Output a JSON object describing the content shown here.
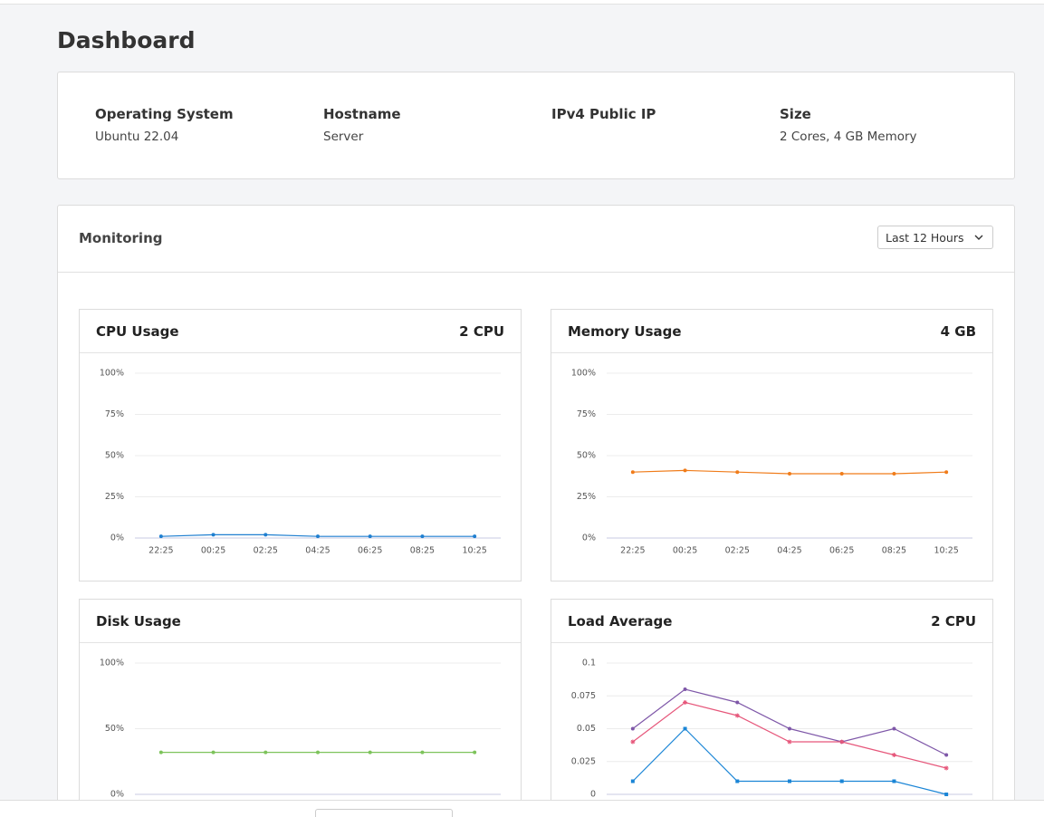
{
  "header": {
    "title": "Dashboard"
  },
  "info": [
    {
      "label": "Operating System",
      "value": "Ubuntu 22.04"
    },
    {
      "label": "Hostname",
      "value": "Server"
    },
    {
      "label": "IPv4 Public IP"
    },
    {
      "label": "Size",
      "value": "2 Cores, 4 GB Memory"
    }
  ],
  "monitoring": {
    "title": "Monitoring",
    "range": "Last 12 Hours",
    "charts": [
      {
        "type": "line",
        "title": "CPU Usage",
        "badge": "2 CPU",
        "categories": [
          "22:25",
          "00:25",
          "02:25",
          "04:25",
          "06:25",
          "08:25",
          "10:25"
        ],
        "series": [
          {
            "color": "#1f7fd0",
            "marker": "circle",
            "values": [
              1,
              2,
              2,
              1,
              1,
              1,
              1
            ]
          }
        ],
        "ylim": [
          0,
          100
        ],
        "yticks": [
          {
            "value": 0,
            "label": "0%"
          },
          {
            "value": 25,
            "label": "25%"
          },
          {
            "value": 50,
            "label": "50%"
          },
          {
            "value": 75,
            "label": "75%"
          },
          {
            "value": 100,
            "label": "100%"
          }
        ]
      },
      {
        "type": "line",
        "title": "Memory Usage",
        "badge": "4 GB",
        "categories": [
          "22:25",
          "00:25",
          "02:25",
          "04:25",
          "06:25",
          "08:25",
          "10:25"
        ],
        "series": [
          {
            "color": "#f07c1a",
            "marker": "circle",
            "values": [
              40,
              41,
              40,
              39,
              39,
              39,
              40
            ]
          }
        ],
        "ylim": [
          0,
          100
        ],
        "yticks": [
          {
            "value": 0,
            "label": "0%"
          },
          {
            "value": 25,
            "label": "25%"
          },
          {
            "value": 50,
            "label": "50%"
          },
          {
            "value": 75,
            "label": "75%"
          },
          {
            "value": 100,
            "label": "100%"
          }
        ]
      },
      {
        "type": "line",
        "title": "Disk Usage",
        "series": [
          {
            "color": "#7dc35b",
            "marker": "circle",
            "values": [
              32,
              32,
              32,
              32,
              32,
              32,
              32
            ]
          }
        ],
        "ylim": [
          0,
          100
        ],
        "yticks": [
          {
            "value": 0,
            "label": "0%"
          },
          {
            "value": 50,
            "label": "50%"
          },
          {
            "value": 100,
            "label": "100%"
          }
        ]
      },
      {
        "type": "line",
        "title": "Load Average",
        "badge": "2 CPU",
        "series": [
          {
            "color": "#7e57a8",
            "marker": "circle",
            "values": [
              0.05,
              0.08,
              0.07,
              0.05,
              0.04,
              0.05,
              0.03
            ]
          },
          {
            "color": "#e6567a",
            "marker": "star",
            "values": [
              0.04,
              0.07,
              0.06,
              0.04,
              0.04,
              0.03,
              0.02
            ]
          },
          {
            "color": "#1a85d6",
            "marker": "square",
            "values": [
              0.01,
              0.05,
              0.01,
              0.01,
              0.01,
              0.01,
              0
            ]
          }
        ],
        "ylim": [
          0,
          0.1
        ],
        "yticks": [
          0,
          0.025,
          0.05,
          0.075,
          0.1
        ]
      }
    ]
  }
}
